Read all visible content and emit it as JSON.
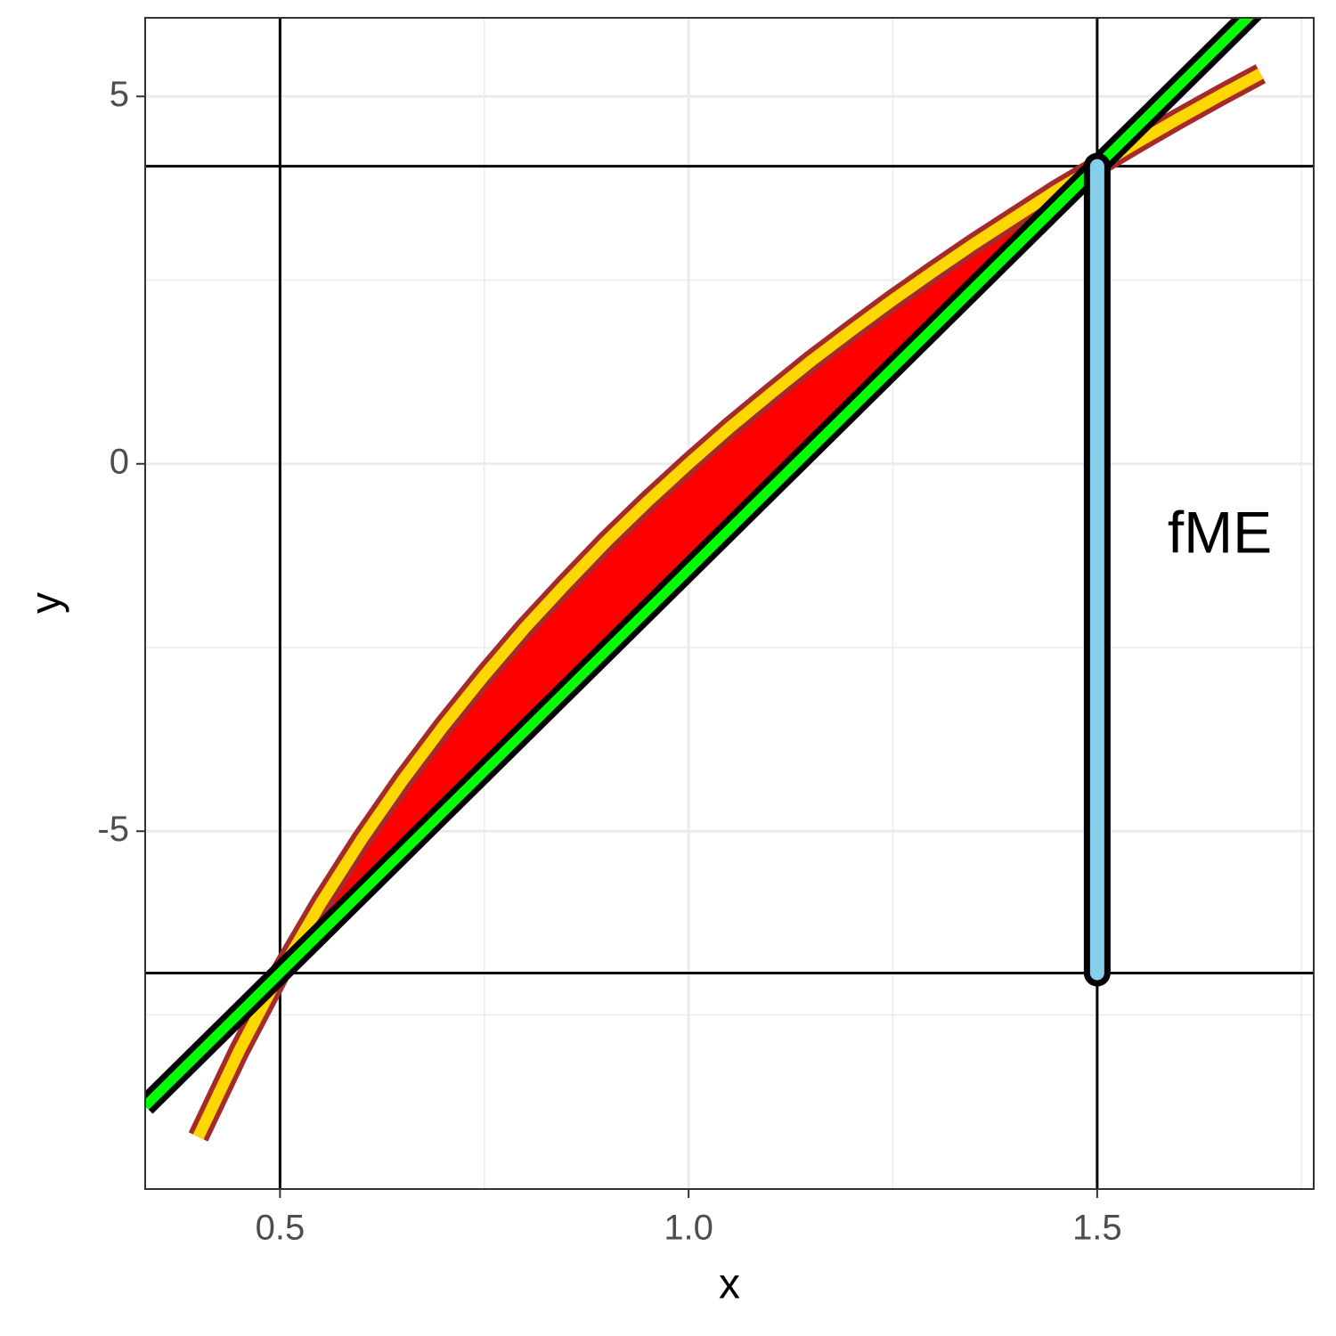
{
  "chart_data": {
    "type": "line",
    "xlabel": "x",
    "ylabel": "y",
    "xlim": [
      0.335,
      1.765
    ],
    "ylim": [
      -9.87,
      6.07
    ],
    "xticks": [
      0.5,
      {
        "value": 1,
        "label": "1.0"
      },
      1.5
    ],
    "yticks": [
      -5,
      0,
      5
    ],
    "xminor": [
      0.75,
      1.25,
      1.75
    ],
    "yminor": [
      -7.5,
      -2.5,
      2.5
    ],
    "grid": true,
    "vlines": [
      0.5,
      1.5
    ],
    "hlines": [
      -6.93,
      4.05
    ],
    "ribbon": {
      "color": "#ff0000",
      "x": [
        0.5,
        0.6,
        0.7,
        0.8,
        0.9,
        1.0,
        1.1,
        1.2,
        1.3,
        1.4,
        1.5
      ],
      "ymin": [
        -6.93,
        -5.83,
        -4.73,
        -3.64,
        -2.54,
        -1.44,
        -0.34,
        0.76,
        1.85,
        2.95,
        4.05
      ],
      "ymax": [
        -6.93,
        -5.11,
        -3.57,
        -2.23,
        -1.05,
        0,
        0.95,
        1.82,
        2.62,
        3.36,
        4.05
      ]
    },
    "series": [
      {
        "color": "#ffd700",
        "outline": "#a52a2a",
        "x": [
          0.4,
          0.45,
          0.5,
          0.55,
          0.6,
          0.65,
          0.7,
          0.75,
          0.8,
          0.85,
          0.9,
          0.95,
          1.0,
          1.05,
          1.1,
          1.15,
          1.2,
          1.25,
          1.3,
          1.35,
          1.4,
          1.45,
          1.5,
          1.55,
          1.6,
          1.65,
          1.7
        ],
        "values": [
          -9.16,
          -7.99,
          -6.93,
          -5.98,
          -5.11,
          -4.31,
          -3.57,
          -2.88,
          -2.23,
          -1.63,
          -1.05,
          -0.51,
          0,
          0.49,
          0.95,
          1.4,
          1.82,
          2.23,
          2.62,
          3.0,
          3.36,
          3.72,
          4.05,
          4.38,
          4.7,
          5.01,
          5.31
        ]
      }
    ],
    "line": {
      "slope": 10.98,
      "intercept": -12.42,
      "color": "#00ff00",
      "outline": "#000000"
    },
    "segment": {
      "x": 1.5,
      "y": [
        -6.93,
        4.05
      ],
      "color": "#87ceeb"
    },
    "annotation": {
      "text": "fME",
      "x": 1.65,
      "y": -1
    }
  }
}
